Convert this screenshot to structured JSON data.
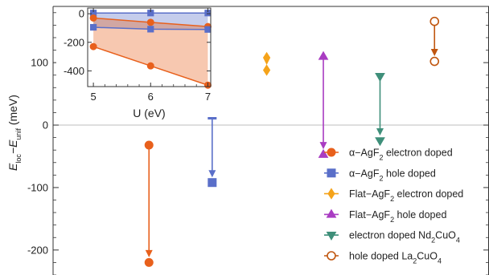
{
  "chart_data": [
    {
      "type": "scatter",
      "ylabel": "E_loc − E_unif (meV)",
      "ylabel_parts": {
        "main": "E",
        "sub1": "loc",
        "mid": "−E",
        "sub2": "unif",
        "unit": " (meV)"
      },
      "ylim": [
        -240,
        190
      ],
      "yticks": [
        {
          "value": 100,
          "label": "100"
        },
        {
          "value": 0,
          "label": "0"
        },
        {
          "value": -100,
          "label": "-100"
        },
        {
          "value": -200,
          "label": "-200"
        }
      ],
      "zero_line": true,
      "legend_placement": "bottom-right",
      "series": [
        {
          "name": "α−AgF₂ electron doped",
          "legend_parts": [
            "α−AgF",
            "2",
            " electron doped"
          ],
          "color": "#e8601c",
          "marker": "circle",
          "filled": true,
          "x": 0.22,
          "from": -32,
          "to": -220
        },
        {
          "name": "α−AgF₂ hole doped",
          "legend_parts": [
            "α−AgF",
            "2",
            " hole doped"
          ],
          "color": "#5a6fc9",
          "marker": "square",
          "filled": true,
          "x": 0.365,
          "from": 16,
          "to": -92
        },
        {
          "name": "Flat−AgF₂ electron doped",
          "legend_parts": [
            "Flat−AgF",
            "2",
            " electron doped"
          ],
          "color": "#f5a31a",
          "marker": "diamond",
          "filled": true,
          "x": 0.49,
          "from": 108,
          "to": 88
        },
        {
          "name": "Flat−AgF₂ hole doped",
          "legend_parts": [
            "Flat−AgF",
            "2",
            " hole doped"
          ],
          "color": "#a93cc2",
          "marker": "triangle-up",
          "filled": true,
          "x": 0.62,
          "from": 110,
          "to": -47
        },
        {
          "name": "electron doped Nd₂CuO₄",
          "legend_parts": [
            "electron doped Nd",
            "2",
            "CuO",
            "4"
          ],
          "color": "#3f8f7a",
          "marker": "triangle-down",
          "filled": true,
          "x": 0.75,
          "from": 78,
          "to": -25
        },
        {
          "name": "hole doped La₂CuO₄",
          "legend_parts": [
            "hole doped La",
            "2",
            "CuO",
            "4"
          ],
          "color": "#c0560f",
          "marker": "circle",
          "filled": false,
          "x": 0.875,
          "from": 166,
          "to": 102
        }
      ]
    },
    {
      "type": "line",
      "xlabel": "U (eV)",
      "x": [
        5,
        6,
        7
      ],
      "xlim": [
        4.9,
        7.05
      ],
      "ylim": [
        -510,
        40
      ],
      "xticks": [
        5,
        6,
        7
      ],
      "yticks": [
        0,
        -200,
        -400
      ],
      "ytick_labels": [
        "0",
        "-200",
        "-400"
      ],
      "series": [
        {
          "color": "#5a6fc9",
          "marker": "square",
          "values": [
            5,
            5,
            5
          ]
        },
        {
          "color": "#e8601c",
          "marker": "circle",
          "values": [
            -30,
            -60,
            -90
          ]
        },
        {
          "color": "#5a6fc9",
          "marker": "square",
          "values": [
            -95,
            -108,
            -110
          ]
        },
        {
          "color": "#e8601c",
          "marker": "circle",
          "values": [
            -230,
            -365,
            -500
          ]
        }
      ],
      "fills": [
        {
          "color": "#5a6fc9",
          "between": [
            0,
            2
          ]
        },
        {
          "color": "#e8601c",
          "between": [
            1,
            3
          ]
        }
      ]
    }
  ]
}
